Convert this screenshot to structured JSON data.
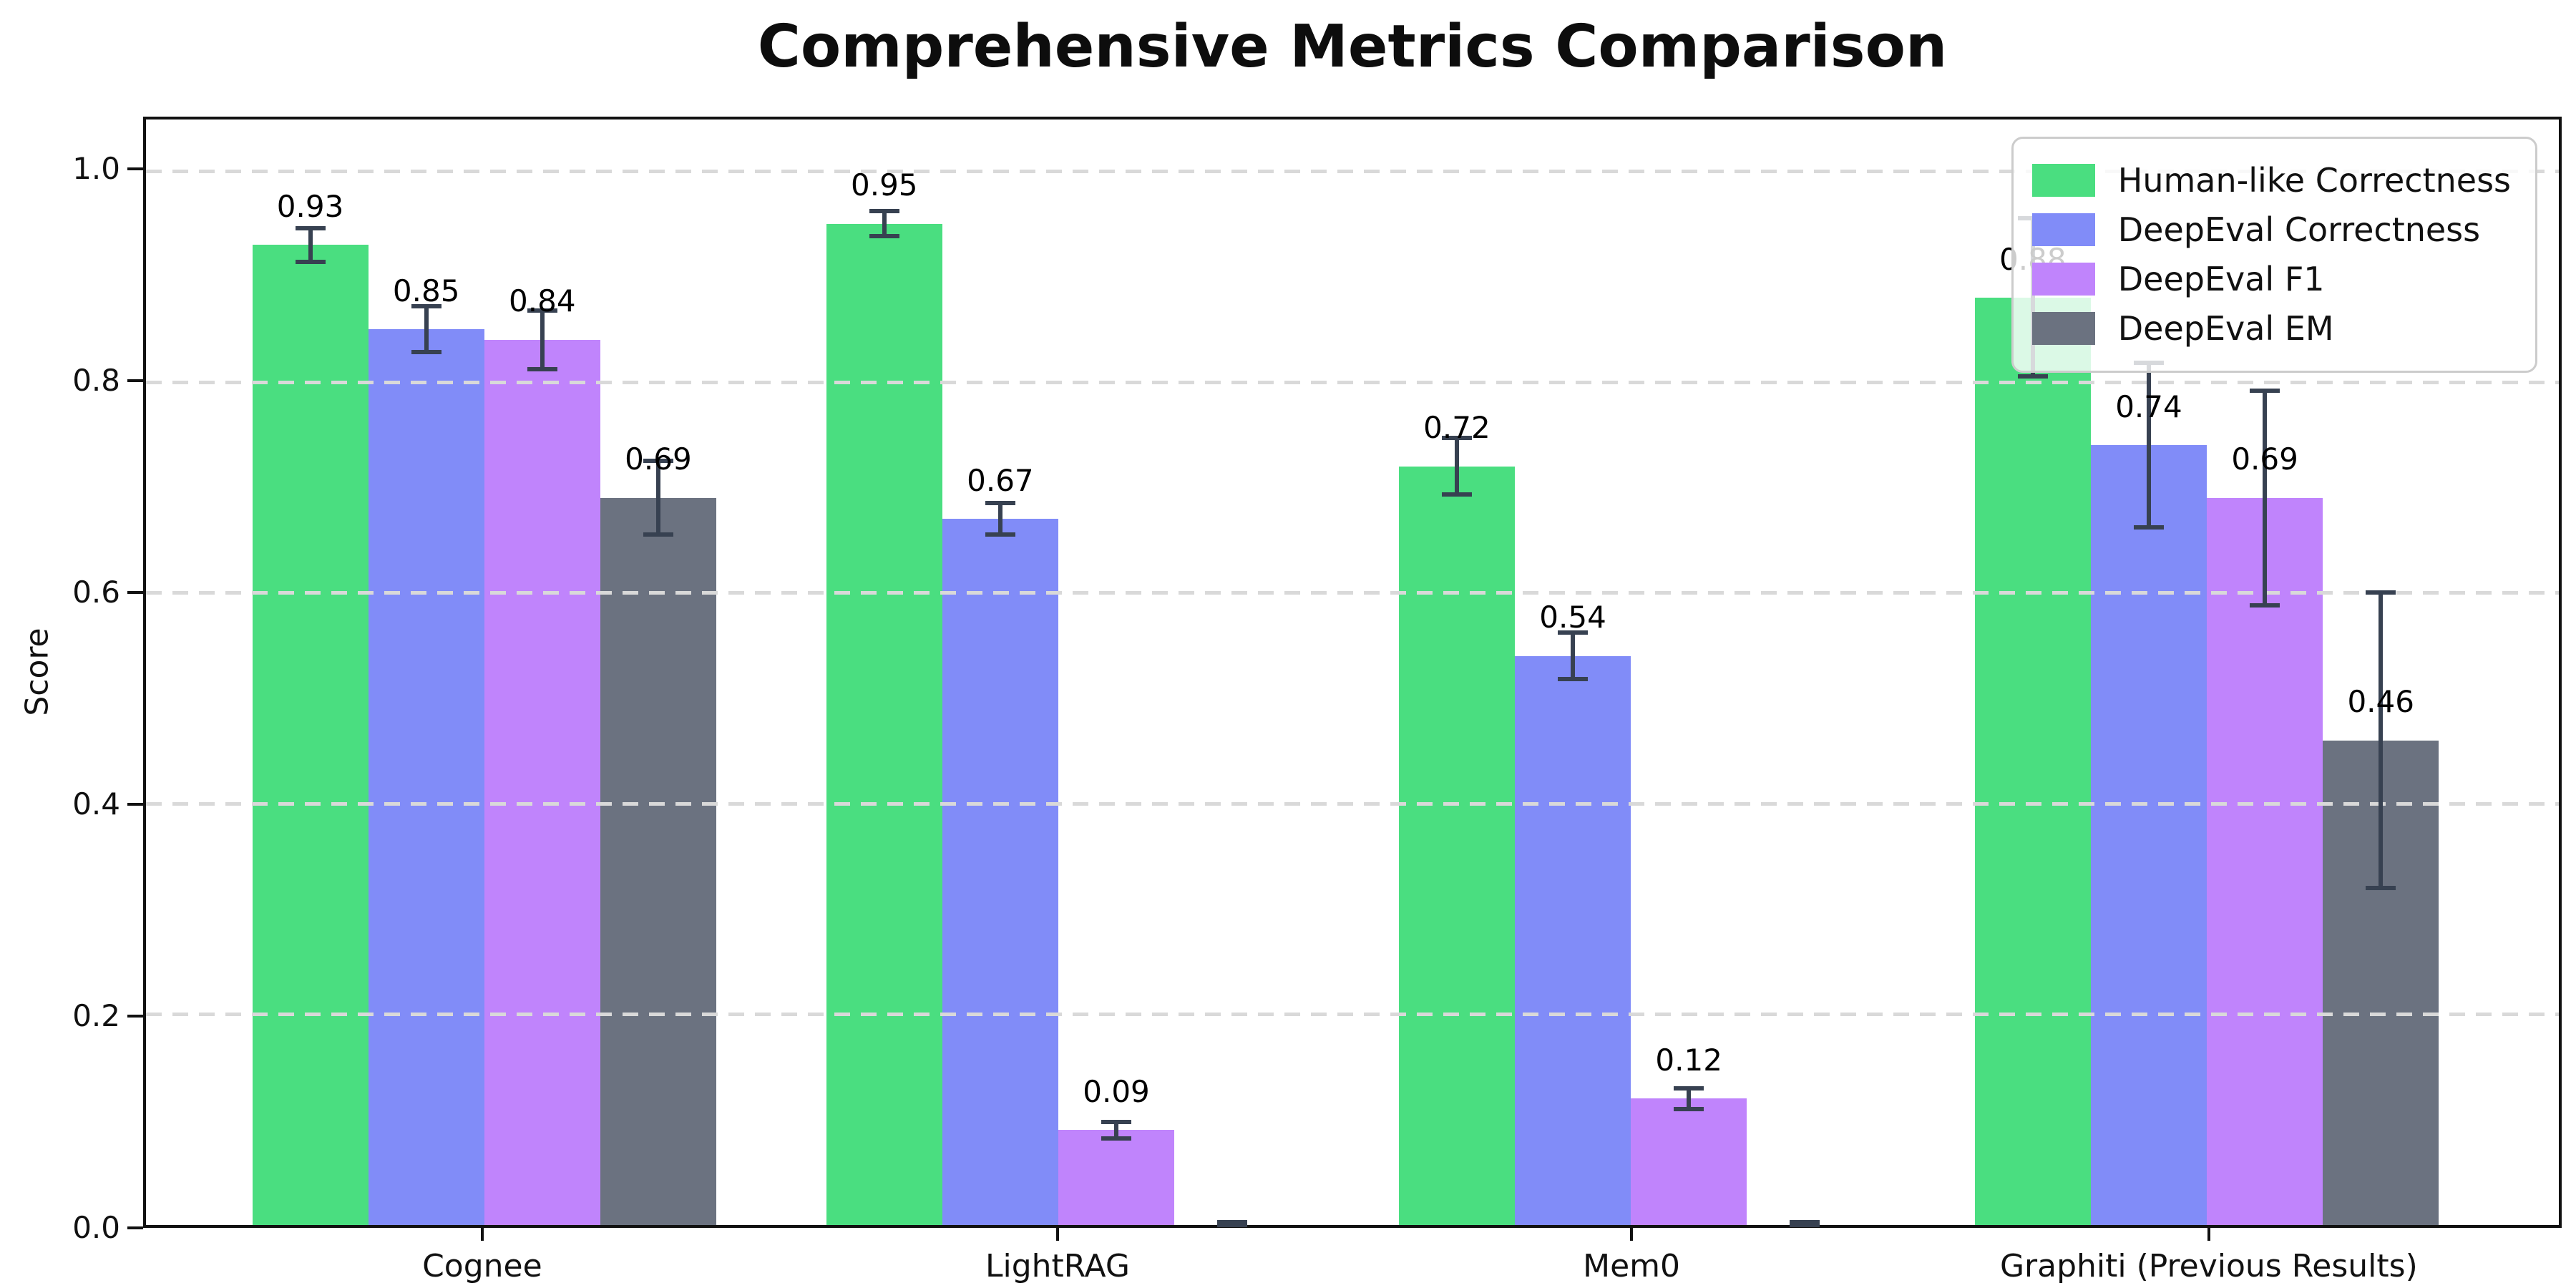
{
  "chart_data": {
    "type": "bar",
    "title": "Comprehensive Metrics Comparison",
    "xlabel": "",
    "ylabel": "Score",
    "categories": [
      "Cognee",
      "LightRAG",
      "Mem0",
      "Graphiti (Previous Results)"
    ],
    "series": [
      {
        "name": "Human-like Correctness",
        "color": "#4ade80",
        "values": [
          0.93,
          0.95,
          0.72,
          0.88
        ],
        "errors": [
          0.016,
          0.012,
          0.027,
          0.075
        ],
        "bar_labels": [
          "0.93",
          "0.95",
          "0.72",
          "0.88"
        ]
      },
      {
        "name": "DeepEval Correctness",
        "color": "#818cf8",
        "values": [
          0.85,
          0.67,
          0.54,
          0.74
        ],
        "errors": [
          0.022,
          0.015,
          0.022,
          0.078
        ],
        "bar_labels": [
          "0.85",
          "0.67",
          "0.54",
          "0.74"
        ]
      },
      {
        "name": "DeepEval F1",
        "color": "#c084fc",
        "values": [
          0.84,
          0.09,
          0.12,
          0.69
        ],
        "errors": [
          0.028,
          0.008,
          0.01,
          0.102
        ],
        "bar_labels": [
          "0.84",
          "0.09",
          "0.12",
          "0.69"
        ]
      },
      {
        "name": "DeepEval EM",
        "color": "#6b7280",
        "values": [
          0.69,
          0.0,
          0.0,
          0.46
        ],
        "errors": [
          0.035,
          0.003,
          0.003,
          0.14
        ],
        "bar_labels": [
          "0.69",
          null,
          null,
          "0.46"
        ]
      }
    ],
    "yticks": [
      {
        "value": 0.0,
        "label": "0.0"
      },
      {
        "value": 0.2,
        "label": "0.2"
      },
      {
        "value": 0.4,
        "label": "0.4"
      },
      {
        "value": 0.6,
        "label": "0.6"
      },
      {
        "value": 0.8,
        "label": "0.8"
      },
      {
        "value": 1.0,
        "label": "1.0"
      }
    ],
    "ylim": [
      0.0,
      1.05
    ],
    "grid": "horizontal-dashed",
    "legend_position": "upper-right"
  },
  "style": {
    "error_bar_color": "#374151",
    "grid_color": "#d9d9d9",
    "axis_color": "#111111",
    "background": "#ffffff"
  }
}
